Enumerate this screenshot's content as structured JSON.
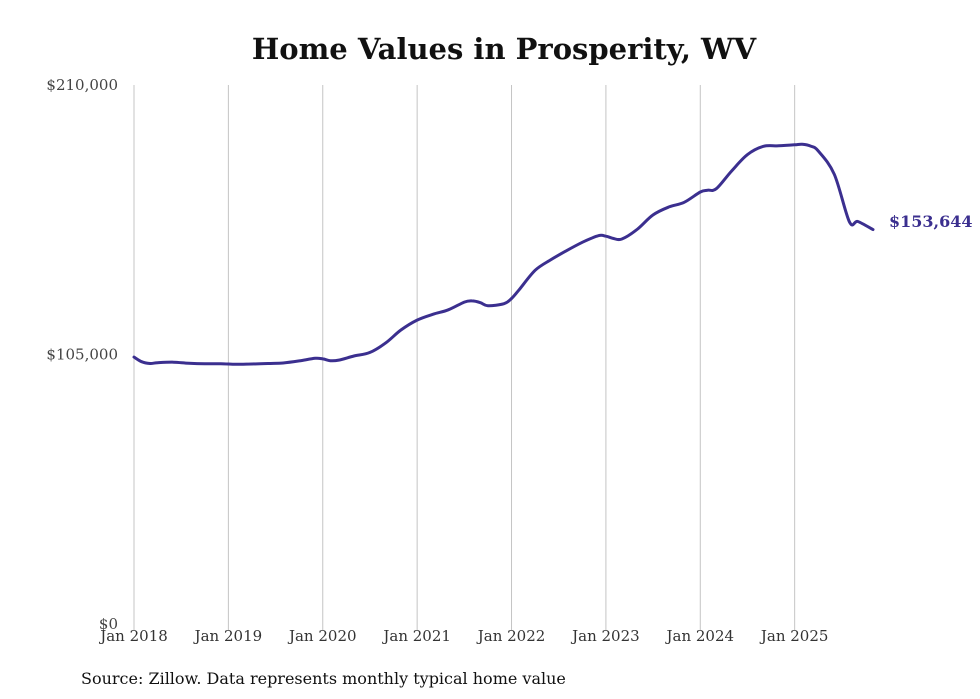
{
  "colors": {
    "line": "#3b2f8f",
    "grid": "#c4c4c4",
    "text": "#111111"
  },
  "chart_data": {
    "type": "line",
    "title": "Home Values in Prosperity, WV",
    "xlabel": "",
    "ylabel": "",
    "ylim": [
      0,
      210000
    ],
    "yticks": [
      {
        "value": 0,
        "label": "$0"
      },
      {
        "value": 105000,
        "label": "$105,000"
      },
      {
        "value": 210000,
        "label": "$210,000"
      }
    ],
    "xticks": [
      {
        "value": 2018.0,
        "label": "Jan 2018"
      },
      {
        "value": 2019.0,
        "label": "Jan 2019"
      },
      {
        "value": 2020.0,
        "label": "Jan 2020"
      },
      {
        "value": 2021.0,
        "label": "Jan 2021"
      },
      {
        "value": 2022.0,
        "label": "Jan 2022"
      },
      {
        "value": 2023.0,
        "label": "Jan 2023"
      },
      {
        "value": 2024.0,
        "label": "Jan 2024"
      },
      {
        "value": 2025.0,
        "label": "Jan 2025"
      }
    ],
    "xlim": [
      2018.0,
      2025.83
    ],
    "grid": "vertical",
    "series": [
      {
        "name": "Typical home value",
        "x": [
          2018.0,
          2018.08,
          2018.17,
          2018.25,
          2018.42,
          2018.58,
          2018.75,
          2018.92,
          2019.08,
          2019.25,
          2019.42,
          2019.58,
          2019.75,
          2019.92,
          2020.0,
          2020.08,
          2020.17,
          2020.33,
          2020.5,
          2020.67,
          2020.83,
          2021.0,
          2021.17,
          2021.33,
          2021.5,
          2021.58,
          2021.67,
          2021.75,
          2021.92,
          2022.0,
          2022.08,
          2022.25,
          2022.42,
          2022.58,
          2022.75,
          2022.92,
          2023.0,
          2023.08,
          2023.17,
          2023.33,
          2023.5,
          2023.67,
          2023.83,
          2024.0,
          2024.08,
          2024.17,
          2024.33,
          2024.5,
          2024.67,
          2024.83,
          2025.0,
          2025.08,
          2025.17,
          2025.25,
          2025.42,
          2025.58,
          2025.67,
          2025.83
        ],
        "values": [
          104000,
          102200,
          101500,
          101800,
          102000,
          101600,
          101400,
          101400,
          101200,
          101300,
          101500,
          101700,
          102500,
          103500,
          103300,
          102600,
          102800,
          104400,
          105800,
          109600,
          114600,
          118400,
          120700,
          122400,
          125400,
          125900,
          125200,
          124000,
          124800,
          126800,
          130200,
          137800,
          142000,
          145400,
          148700,
          151300,
          151100,
          150200,
          150000,
          153700,
          159400,
          162500,
          164300,
          168300,
          169000,
          169600,
          176400,
          182900,
          186100,
          186300,
          186700,
          186900,
          186200,
          184300,
          175200,
          156700,
          156800,
          153644
        ]
      }
    ],
    "end_label": "$153,644",
    "source": "Source: Zillow. Data represents monthly typical home value"
  }
}
